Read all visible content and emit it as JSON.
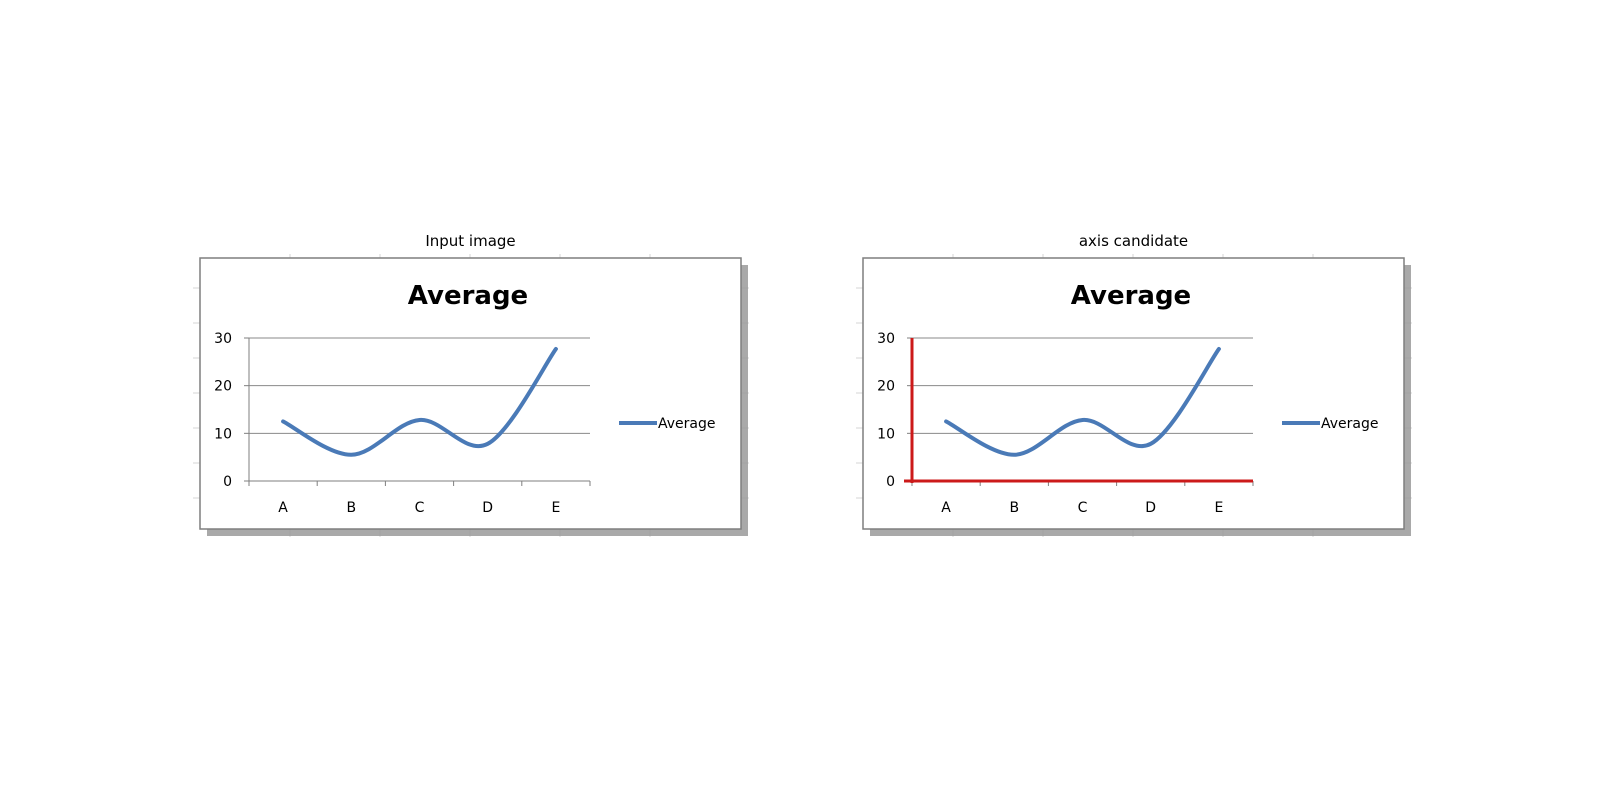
{
  "panels": [
    {
      "title": "Input image",
      "highlight_axes": false
    },
    {
      "title": "axis candidate",
      "highlight_axes": true
    }
  ],
  "colors": {
    "series": "#4a7ab7",
    "axis_highlight": "#cc1a1a",
    "gridline": "#8a8a8a",
    "frame": "#7f7f7f",
    "shadow": "#9a9a9a"
  },
  "chart_data": {
    "type": "line",
    "title": "Average",
    "categories": [
      "A",
      "B",
      "C",
      "D",
      "E"
    ],
    "series": [
      {
        "name": "Average",
        "values": [
          12.5,
          5.5,
          12.8,
          7.8,
          27.7
        ]
      }
    ],
    "ylim": [
      0,
      30
    ],
    "yticks": [
      0,
      10,
      20,
      30
    ],
    "grid": true,
    "smooth": true,
    "legend": "right"
  }
}
